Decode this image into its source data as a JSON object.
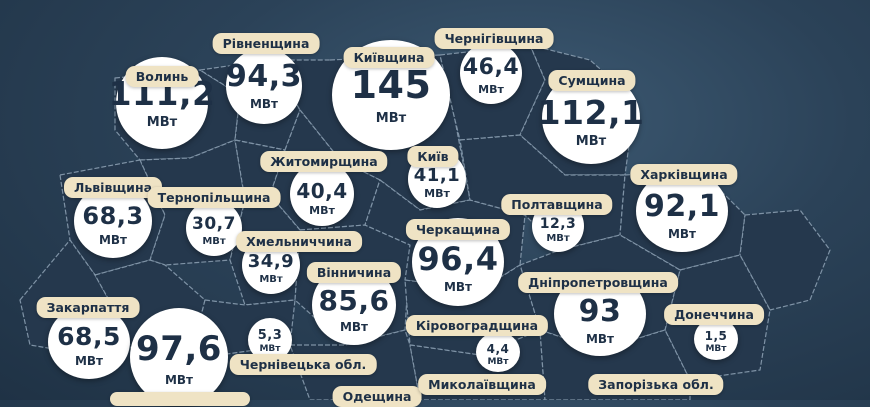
{
  "unit": "МВт",
  "colors": {
    "background": "#2b4258",
    "region_fill": "#25384d",
    "border": "#7f93a6",
    "bubble": "#ffffff",
    "label": "#efe3c4",
    "text": "#1e3046"
  },
  "regions": {
    "volyn": {
      "name": "Волинь",
      "value": "111,2"
    },
    "rivne": {
      "name": "Рівненщина",
      "value": "94,3"
    },
    "kyiv_oblast": {
      "name": "Київщина",
      "value": "145"
    },
    "chernihiv": {
      "name": "Чернігівщина",
      "value": "46,4"
    },
    "sumy": {
      "name": "Сумщина",
      "value": "112,1"
    },
    "zhytomyr": {
      "name": "Житомирщина",
      "value": "40,4"
    },
    "kyiv_city": {
      "name": "Київ",
      "value": "41,1"
    },
    "lviv": {
      "name": "Львівщина",
      "value": "68,3"
    },
    "ternopil": {
      "name": "Тернопільщина",
      "value": "30,7"
    },
    "poltava": {
      "name": "Полтавщина",
      "value": "12,3"
    },
    "kharkiv": {
      "name": "Харківщина",
      "value": "92,1"
    },
    "khmelnytskyi": {
      "name": "Хмельниччина",
      "value": "34,9"
    },
    "cherkasy": {
      "name": "Черкащина",
      "value": "96,4"
    },
    "vinnytsia": {
      "name": "Вінничина",
      "value": "85,6"
    },
    "dnipro": {
      "name": "Дніпропетровщина",
      "value": "93"
    },
    "zakarpattia": {
      "name": "Закарпаття",
      "value": "68,5"
    },
    "ivano_frankivsk": {
      "value": "97,6"
    },
    "chernivtsi": {
      "name": "Чернівецька обл.",
      "value": "5,3"
    },
    "kirovohrad": {
      "name": "Кіровоградщина",
      "value": "4,4"
    },
    "donetsk": {
      "name": "Донеччина",
      "value": "1,5"
    },
    "mykolaiv": {
      "name": "Миколаївщина"
    },
    "zaporizhzhia": {
      "name": "Запорізька обл."
    },
    "odesa": {
      "name": "Одещина"
    }
  }
}
